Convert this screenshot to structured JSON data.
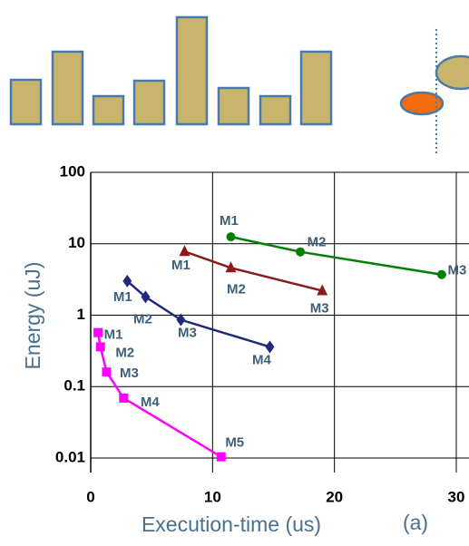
{
  "chart_data": {
    "type": "line",
    "x_label": "Execution-time (us)",
    "y_label": "Energy  (uJ)",
    "annotation": "(a)",
    "log_y": true,
    "grid": true,
    "xlim": [
      0,
      30
    ],
    "xticks": [
      0,
      10,
      20,
      30
    ],
    "ylim": [
      0.01,
      100
    ],
    "yticks": [
      0.01,
      0.1,
      1,
      10,
      100
    ],
    "series": [
      {
        "color": "#008000",
        "marker": "circle",
        "x": [
          11.5,
          17.2,
          28.8
        ],
        "values": [
          12.5,
          7.7,
          3.7
        ],
        "labels": [
          "M1",
          "M2",
          "M3"
        ]
      },
      {
        "color": "#8b1a1a",
        "marker": "triangle",
        "x": [
          7.7,
          11.5,
          19.0
        ],
        "values": [
          7.8,
          4.6,
          2.2
        ],
        "labels": [
          "M1",
          "M2",
          "M3"
        ]
      },
      {
        "color": "#1f2a7a",
        "marker": "diamond",
        "x": [
          3.0,
          4.5,
          7.4,
          14.7
        ],
        "values": [
          3.0,
          1.8,
          0.86,
          0.36
        ],
        "labels": [
          "M1",
          "M2",
          "M3",
          "M4"
        ]
      },
      {
        "color": "#ff00ff",
        "marker": "square",
        "x": [
          0.6,
          0.8,
          1.3,
          2.7,
          10.7
        ],
        "values": [
          0.57,
          0.36,
          0.16,
          0.069,
          0.0104
        ],
        "labels": [
          "M1",
          "M2",
          "M3",
          "M4",
          "M5"
        ]
      }
    ]
  }
}
